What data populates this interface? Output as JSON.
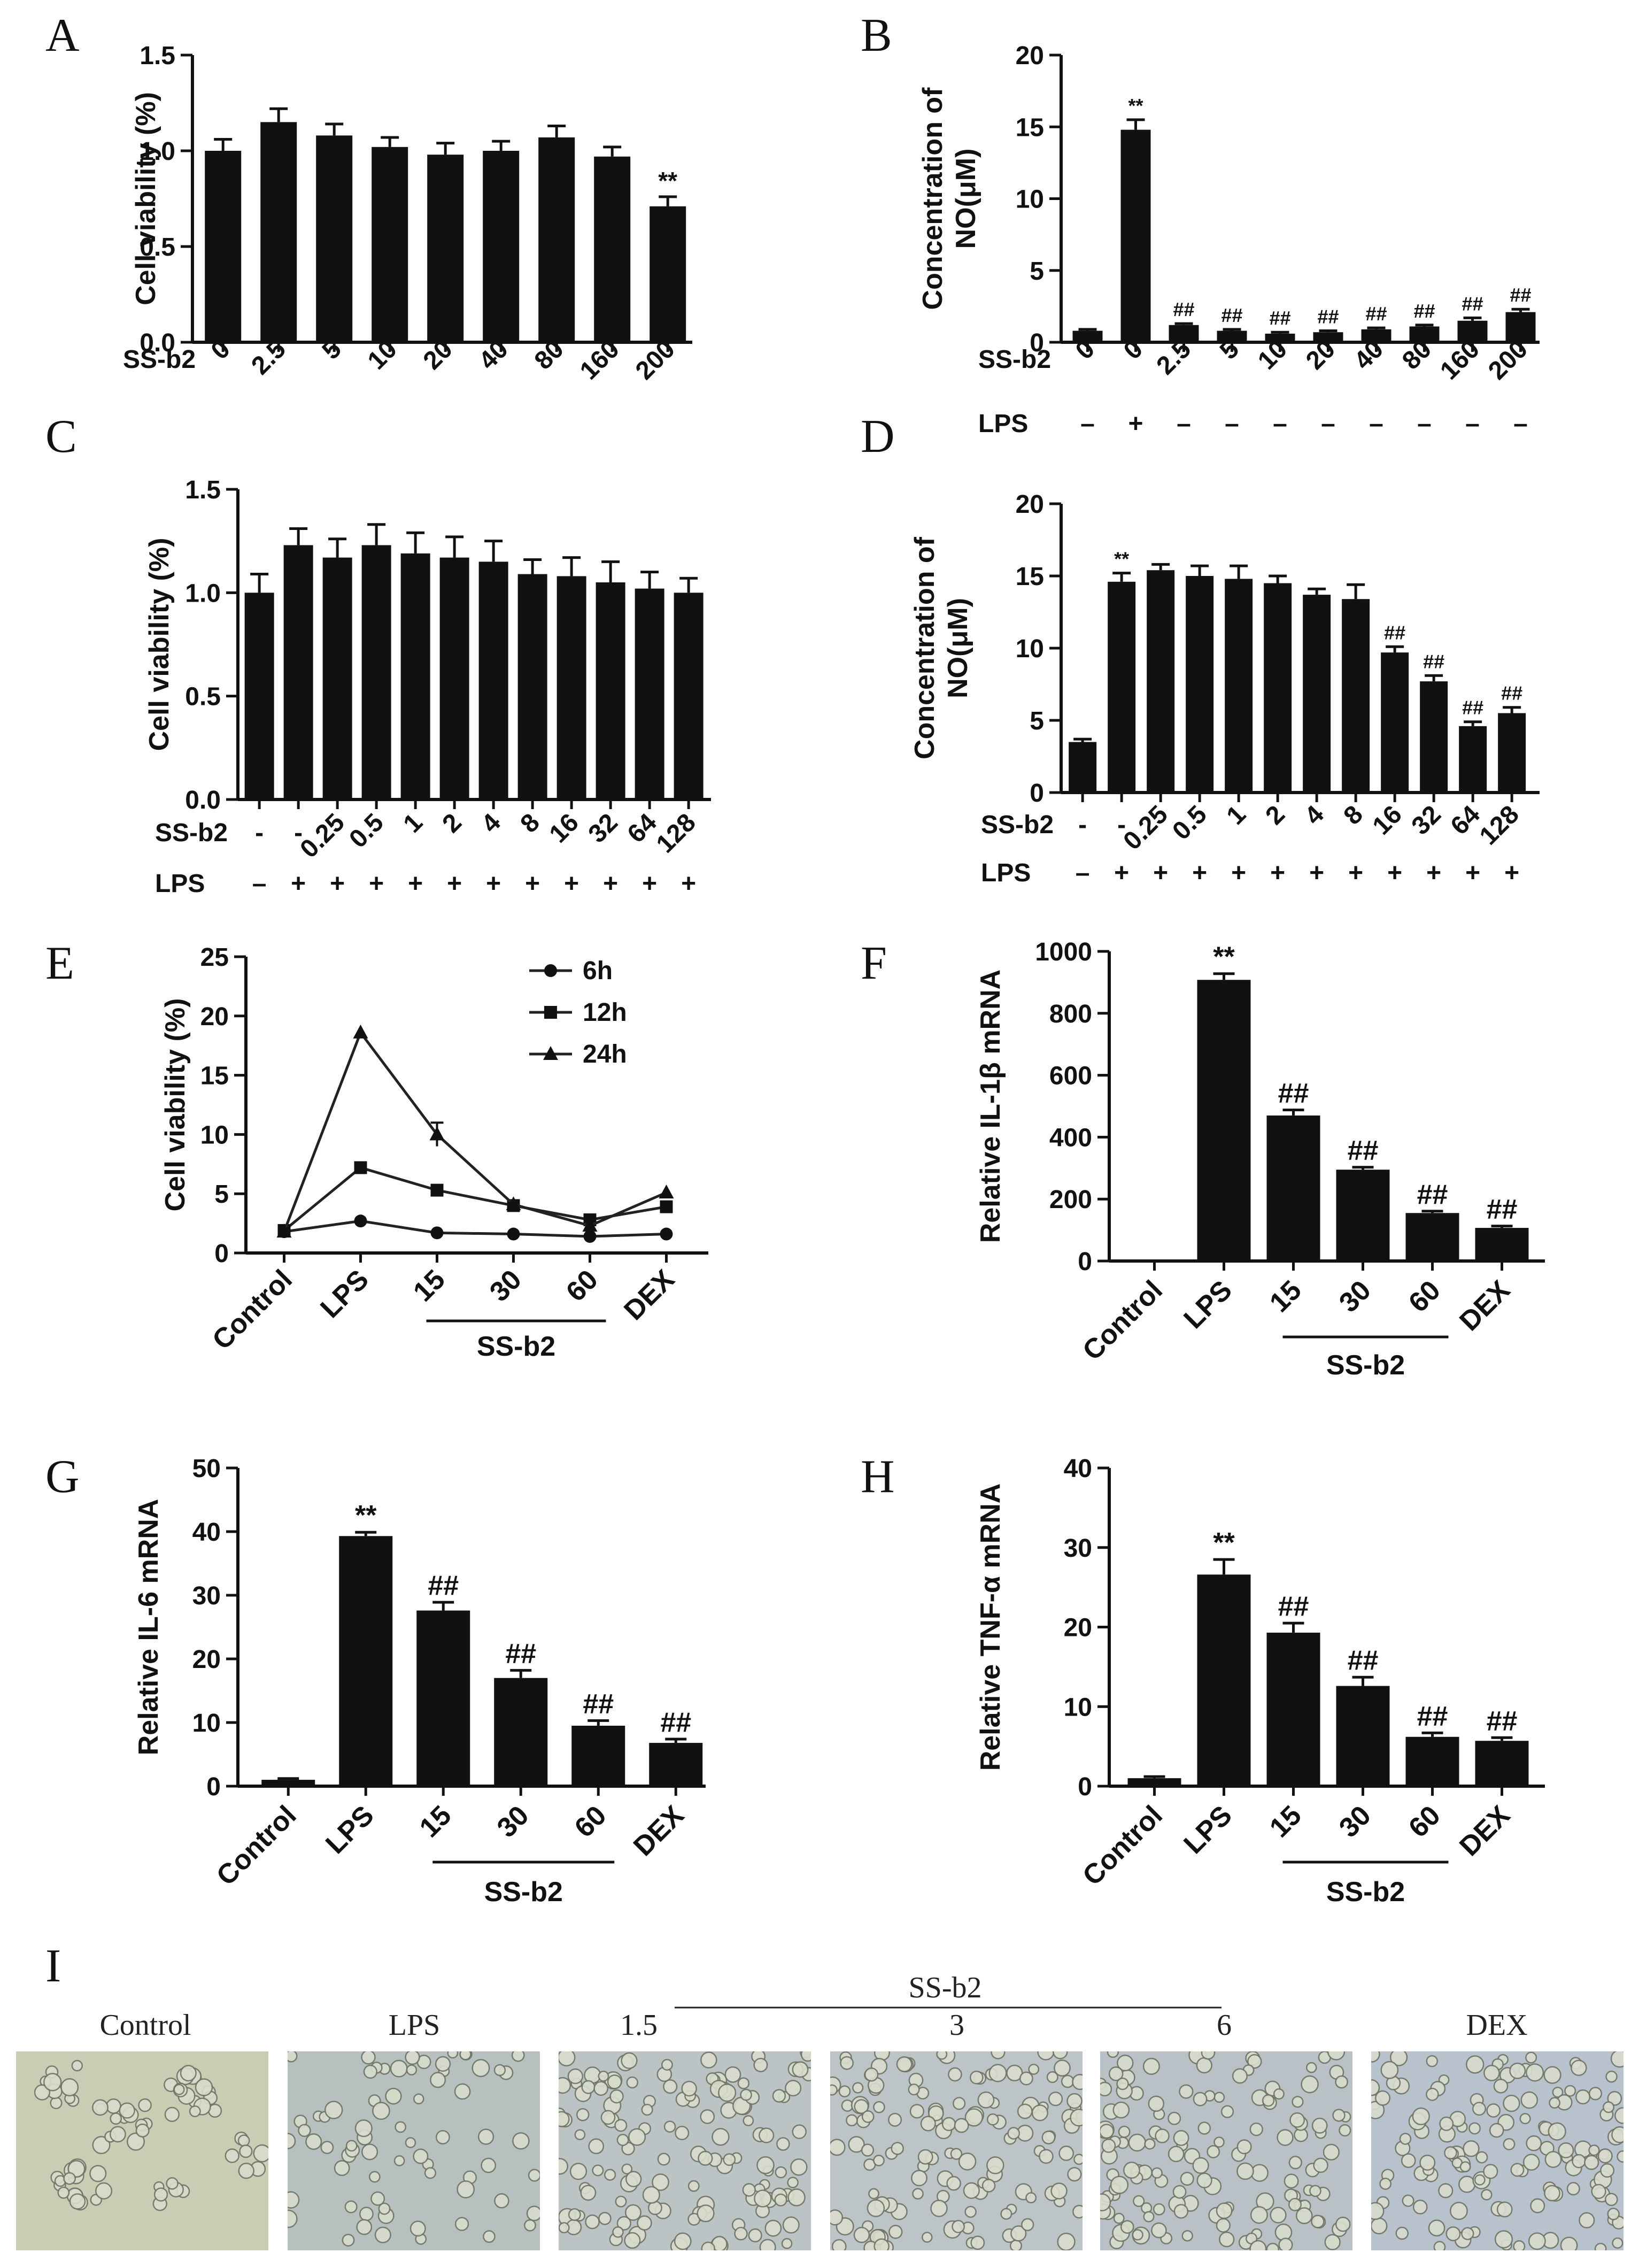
{
  "chart_data": [
    {
      "id": "A",
      "type": "bar",
      "title": "A",
      "ylabel": "Cell viability (%)",
      "ylim": [
        0,
        1.5
      ],
      "yticks": [
        "0.0",
        "0.5",
        "1.0",
        "1.5"
      ],
      "row_labels": [
        "SS-b2"
      ],
      "rows": [
        [
          "0",
          "2.5",
          "5",
          "10",
          "20",
          "40",
          "80",
          "160",
          "200"
        ]
      ],
      "values": [
        1.0,
        1.15,
        1.08,
        1.02,
        0.98,
        1.0,
        1.07,
        0.97,
        0.71
      ],
      "errors": [
        0.06,
        0.07,
        0.06,
        0.05,
        0.06,
        0.05,
        0.06,
        0.05,
        0.05
      ],
      "annotations": [
        "",
        "",
        "",
        "",
        "",
        "",
        "",
        "",
        "**"
      ]
    },
    {
      "id": "B",
      "type": "bar",
      "title": "B",
      "ylabel": [
        "Concentration of",
        "NO(μM)"
      ],
      "ylim": [
        0,
        20
      ],
      "yticks": [
        "0",
        "5",
        "10",
        "15",
        "20"
      ],
      "row_labels": [
        "SS-b2",
        "LPS"
      ],
      "rows": [
        [
          "0",
          "0",
          "2.5",
          "5",
          "10",
          "20",
          "40",
          "80",
          "160",
          "200"
        ],
        [
          "–",
          "+",
          "–",
          "–",
          "–",
          "–",
          "–",
          "–",
          "–",
          "–"
        ]
      ],
      "values": [
        0.8,
        14.8,
        1.2,
        0.8,
        0.6,
        0.7,
        0.9,
        1.1,
        1.5,
        2.1
      ],
      "errors": [
        0.1,
        0.7,
        0.1,
        0.1,
        0.1,
        0.1,
        0.1,
        0.1,
        0.2,
        0.2
      ],
      "annotations": [
        "",
        "**",
        "##",
        "##",
        "##",
        "##",
        "##",
        "##",
        "##",
        "##"
      ]
    },
    {
      "id": "C",
      "type": "bar",
      "title": "C",
      "ylabel": "Cell viability (%)",
      "ylim": [
        0,
        1.5
      ],
      "yticks": [
        "0.0",
        "0.5",
        "1.0",
        "1.5"
      ],
      "row_labels": [
        "SS-b2",
        "LPS"
      ],
      "rows": [
        [
          "-",
          "-",
          "0.25",
          "0.5",
          "1",
          "2",
          "4",
          "8",
          "16",
          "32",
          "64",
          "128"
        ],
        [
          "–",
          "+",
          "+",
          "+",
          "+",
          "+",
          "+",
          "+",
          "+",
          "+",
          "+",
          "+"
        ]
      ],
      "values": [
        1.0,
        1.23,
        1.17,
        1.23,
        1.19,
        1.17,
        1.15,
        1.09,
        1.08,
        1.05,
        1.02,
        1.0
      ],
      "errors": [
        0.09,
        0.08,
        0.09,
        0.1,
        0.1,
        0.1,
        0.1,
        0.07,
        0.09,
        0.1,
        0.08,
        0.07
      ],
      "annotations": [
        "",
        "",
        "",
        "",
        "",
        "",
        "",
        "",
        "",
        "",
        "",
        ""
      ]
    },
    {
      "id": "D",
      "type": "bar",
      "title": "D",
      "ylabel": [
        "Concentration of",
        "NO(μM)"
      ],
      "ylim": [
        0,
        20
      ],
      "yticks": [
        "0",
        "5",
        "10",
        "15",
        "20"
      ],
      "row_labels": [
        "SS-b2",
        "LPS"
      ],
      "rows": [
        [
          "-",
          "-",
          "0.25",
          "0.5",
          "1",
          "2",
          "4",
          "8",
          "16",
          "32",
          "64",
          "128"
        ],
        [
          "–",
          "+",
          "+",
          "+",
          "+",
          "+",
          "+",
          "+",
          "+",
          "+",
          "+",
          "+"
        ]
      ],
      "values": [
        3.5,
        14.6,
        15.4,
        15.0,
        14.8,
        14.5,
        13.7,
        13.4,
        9.7,
        7.7,
        4.6,
        5.5
      ],
      "errors": [
        0.2,
        0.6,
        0.4,
        0.7,
        0.9,
        0.5,
        0.4,
        1.0,
        0.4,
        0.4,
        0.3,
        0.4
      ],
      "annotations": [
        "",
        "**",
        "",
        "",
        "",
        "",
        "",
        "",
        "##",
        "##",
        "##",
        "##"
      ]
    },
    {
      "id": "E",
      "type": "line",
      "title": "E",
      "ylabel": "Cell viability (%)",
      "ylim": [
        0,
        25
      ],
      "yticks": [
        "0",
        "5",
        "10",
        "15",
        "20",
        "25"
      ],
      "categories": [
        "Control",
        "LPS",
        "15",
        "30",
        "60",
        "DEX"
      ],
      "group_label": "SS-b2",
      "series": [
        {
          "name": "6h",
          "marker": "circle",
          "values": [
            1.8,
            2.7,
            1.7,
            1.6,
            1.4,
            1.6
          ]
        },
        {
          "name": "12h",
          "marker": "square",
          "values": [
            1.9,
            7.2,
            5.3,
            4.0,
            2.8,
            3.9
          ]
        },
        {
          "name": "24h",
          "marker": "triangle",
          "values": [
            1.8,
            18.6,
            10.0,
            4.1,
            2.3,
            5.1
          ]
        }
      ]
    },
    {
      "id": "F",
      "type": "bar",
      "title": "F",
      "ylabel": "Relative IL-1β mRNA",
      "ylim": [
        0,
        1000
      ],
      "yticks": [
        "0",
        "200",
        "400",
        "600",
        "800",
        "1000"
      ],
      "categories": [
        "Control",
        "LPS",
        "15",
        "30",
        "60",
        "DEX"
      ],
      "group_label": "SS-b2",
      "values": [
        1,
        908,
        470,
        295,
        155,
        107
      ],
      "errors": [
        0,
        20,
        18,
        8,
        6,
        6
      ],
      "annotations": [
        "",
        "**",
        "##",
        "##",
        "##",
        "##"
      ]
    },
    {
      "id": "G",
      "type": "bar",
      "title": "G",
      "ylabel": "Relative IL-6 mRNA",
      "ylim": [
        0,
        50
      ],
      "yticks": [
        "0",
        "10",
        "20",
        "30",
        "40",
        "50"
      ],
      "categories": [
        "Control",
        "LPS",
        "15",
        "30",
        "60",
        "DEX"
      ],
      "group_label": "SS-b2",
      "values": [
        1.0,
        39.3,
        27.6,
        17.0,
        9.5,
        6.8
      ],
      "errors": [
        0.2,
        0.6,
        1.3,
        1.2,
        0.8,
        0.6
      ],
      "annotations": [
        "",
        "**",
        "##",
        "##",
        "##",
        "##"
      ]
    },
    {
      "id": "H",
      "type": "bar",
      "title": "H",
      "ylabel": "Relative TNF-α mRNA",
      "ylim": [
        0,
        40
      ],
      "yticks": [
        "0",
        "10",
        "20",
        "30",
        "40"
      ],
      "categories": [
        "Control",
        "LPS",
        "15",
        "30",
        "60",
        "DEX"
      ],
      "group_label": "SS-b2",
      "values": [
        1.0,
        26.6,
        19.3,
        12.6,
        6.2,
        5.7
      ],
      "errors": [
        0.2,
        1.9,
        1.2,
        1.1,
        0.5,
        0.4
      ],
      "annotations": [
        "",
        "**",
        "##",
        "##",
        "##",
        "##"
      ]
    }
  ],
  "panel_I": {
    "title": "I",
    "group_label": "SS-b2",
    "images": [
      {
        "label": "Control",
        "tone": "#c9cdb4",
        "density": "low"
      },
      {
        "label": "LPS",
        "tone": "#b6c0be",
        "density": "low"
      },
      {
        "label": "1.5",
        "tone": "#bcc3c4",
        "density": "high"
      },
      {
        "label": "3",
        "tone": "#bcc4c8",
        "density": "high"
      },
      {
        "label": "6",
        "tone": "#b9c1c6",
        "density": "high"
      },
      {
        "label": "DEX",
        "tone": "#b8c2cd",
        "density": "high"
      }
    ]
  }
}
